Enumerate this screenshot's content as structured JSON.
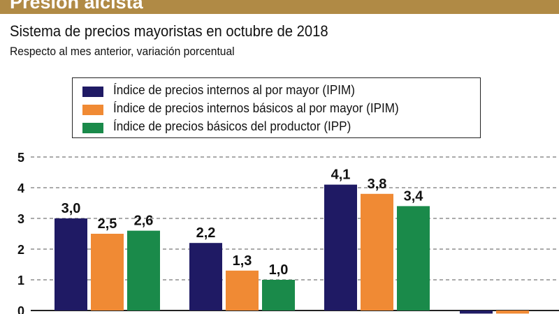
{
  "header": {
    "banner_title": "Presión alcista",
    "title": "Sistema de precios mayoristas en octubre de 2018",
    "subtitle": "Respecto al mes anterior, variación porcentual"
  },
  "legend": [
    {
      "label": "Índice de precios internos al por mayor (IPIM)",
      "color": "#1f1a64"
    },
    {
      "label": "Índice de precios internos básicos al por mayor (IPIM)",
      "color": "#f08a34"
    },
    {
      "label": "Índice de precios básicos del productor (IPP)",
      "color": "#1a8a4a"
    }
  ],
  "chart_data": {
    "type": "bar",
    "title": "Sistema de precios mayoristas en octubre de 2018",
    "subtitle": "Respecto al mes anterior, variación porcentual",
    "xlabel": "",
    "ylabel": "",
    "ylim": [
      0,
      5
    ],
    "yticks": [
      "0",
      "1",
      "2",
      "3",
      "4",
      "5"
    ],
    "grid": true,
    "categories": [
      "",
      "",
      "",
      ""
    ],
    "series": [
      {
        "name": "Índice de precios internos al por mayor (IPIM)",
        "color": "#1f1a64",
        "values": [
          3.0,
          2.2,
          4.1,
          -0.1
        ],
        "labels": [
          "3,0",
          "2,2",
          "4,1",
          ""
        ]
      },
      {
        "name": "Índice de precios internos básicos al por mayor (IPIM)",
        "color": "#f08a34",
        "values": [
          2.5,
          1.3,
          3.8,
          -0.1
        ],
        "labels": [
          "2,5",
          "1,3",
          "3,8",
          ""
        ]
      },
      {
        "name": "Índice de precios básicos del productor (IPP)",
        "color": "#1a8a4a",
        "values": [
          2.6,
          1.0,
          3.4,
          null
        ],
        "labels": [
          "2,6",
          "1,0",
          "3,4",
          ""
        ]
      }
    ]
  }
}
